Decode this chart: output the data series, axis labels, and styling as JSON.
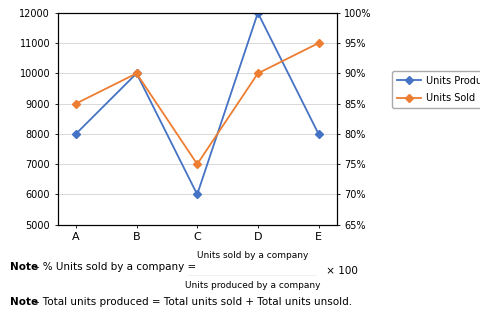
{
  "categories": [
    "A",
    "B",
    "C",
    "D",
    "E"
  ],
  "units_produced": [
    8000,
    10000,
    6000,
    12000,
    8000
  ],
  "units_sold_pct": [
    85,
    90,
    75,
    90,
    95
  ],
  "left_ylim": [
    5000,
    12000
  ],
  "left_yticks": [
    5000,
    6000,
    7000,
    8000,
    9000,
    10000,
    11000,
    12000
  ],
  "right_ylim": [
    65,
    100
  ],
  "right_yticks": [
    65,
    70,
    75,
    80,
    85,
    90,
    95,
    100
  ],
  "right_yticklabels": [
    "65%",
    "70%",
    "75%",
    "80%",
    "85%",
    "90%",
    "95%",
    "100%"
  ],
  "line1_color": "#4472C4",
  "line2_color": "#ED7D31",
  "line1_label": "Units Produced",
  "line2_label": "Units Sold",
  "marker": "D",
  "note1_bold": "Note",
  "note1_dash": " – % Units sold by a company = ",
  "note1_numerator": "Units sold by a company",
  "note1_denominator": "Units produced by a company",
  "note1_multiplier": " × 100",
  "note2_bold": "Note",
  "note2_text": " – Total units produced = Total units sold + Total units unsold.",
  "bg_color": "#ffffff",
  "border_color": "#000000"
}
